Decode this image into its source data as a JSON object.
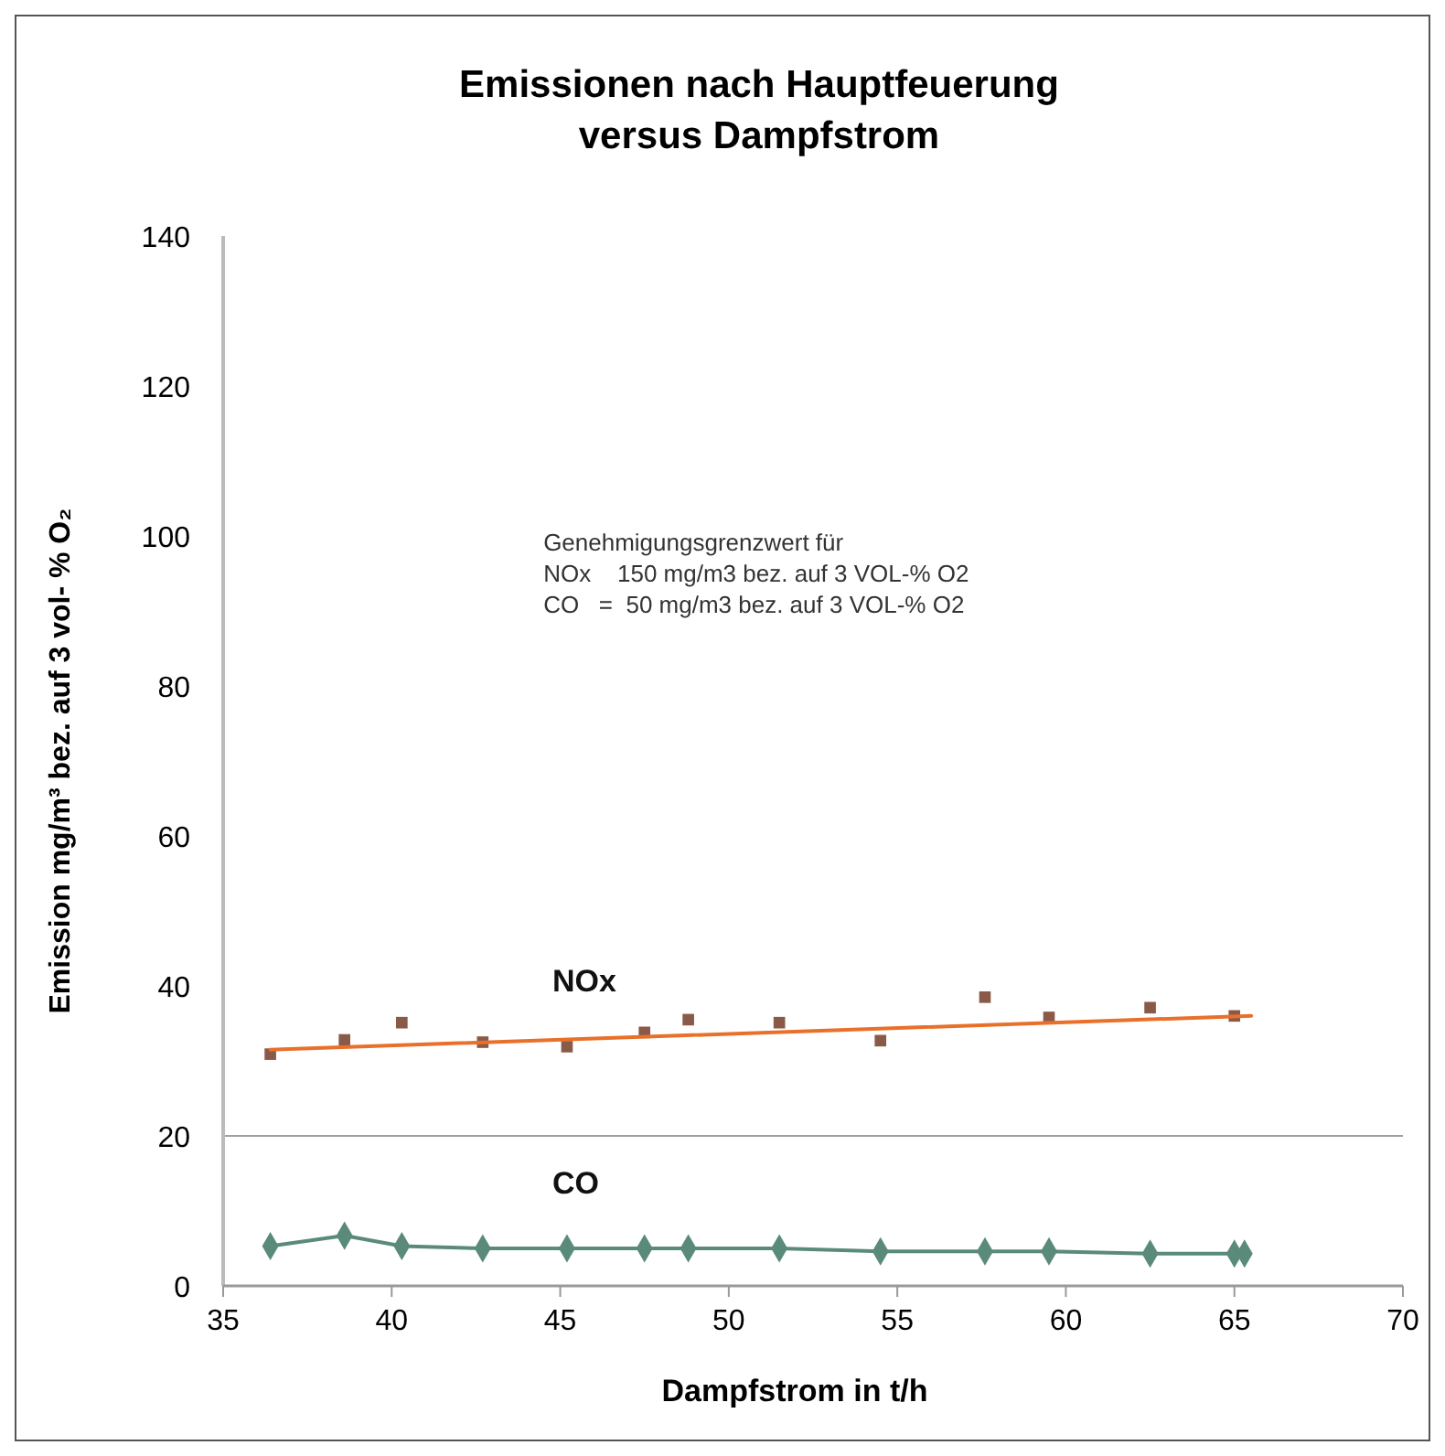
{
  "chart_data": {
    "type": "scatter",
    "title": "Emissionen nach Hauptfeuerung",
    "subtitle": "versus Dampfstrom",
    "xlabel": "Dampfstrom in t/h",
    "ylabel": "Emission mg/m³ bez. auf 3 vol- % O₂",
    "xlim": [
      35,
      70
    ],
    "xticks": [
      35,
      40,
      45,
      50,
      55,
      60,
      65,
      70
    ],
    "ylim": [
      0,
      140
    ],
    "yticks": [
      0,
      20,
      40,
      60,
      80,
      100,
      120,
      140
    ],
    "grid": false,
    "ref_lines": [
      {
        "axis": "y",
        "value": 20,
        "color": "#a0a0a0"
      }
    ],
    "annotations": [
      "Genehmigungsgrenzwert für\nNOx    150 mg/m3 bez. auf 3 VOL-% O2\nCO   =  50 mg/m3 bez. auf 3 VOL-% O2"
    ],
    "series": [
      {
        "name": "NOx",
        "marker": "square",
        "color": "#8a5a48",
        "x": [
          36.4,
          38.6,
          40.3,
          42.7,
          45.2,
          47.5,
          48.8,
          51.5,
          54.5,
          57.6,
          59.5,
          62.5,
          65.0
        ],
        "values": [
          30.9,
          32.8,
          35.1,
          32.5,
          31.9,
          33.8,
          35.5,
          35.1,
          32.7,
          38.5,
          35.8,
          37.1,
          36.0
        ]
      },
      {
        "type": "line",
        "marker": "none",
        "color": "#e8702a",
        "x": [
          36.4,
          65.5
        ],
        "values": [
          31.5,
          36.0
        ]
      },
      {
        "name": "CO",
        "type": "line",
        "marker": "diamond",
        "color": "#5a8a7a",
        "x": [
          36.4,
          38.6,
          40.3,
          42.7,
          45.2,
          47.5,
          48.8,
          51.5,
          54.5,
          57.6,
          59.5,
          62.5,
          65.0,
          65.3
        ],
        "values": [
          5.3,
          6.7,
          5.3,
          5.0,
          5.0,
          5.0,
          5.0,
          5.0,
          4.6,
          4.6,
          4.6,
          4.3,
          4.3,
          4.3
        ]
      }
    ]
  }
}
